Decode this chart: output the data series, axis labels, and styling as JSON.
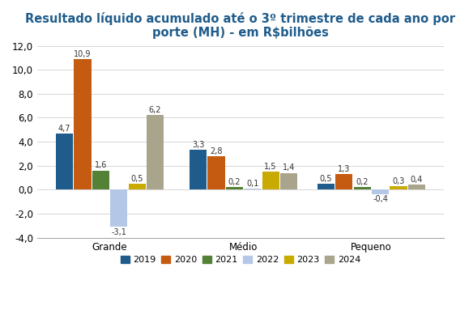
{
  "title": "Resultado líquido acumulado até o 3º trimestre de cada ano por\nporte (MH) - em R$bilhões",
  "categories": [
    "Grande",
    "Médio",
    "Pequeno"
  ],
  "years": [
    "2019",
    "2020",
    "2021",
    "2022",
    "2023",
    "2024"
  ],
  "colors": [
    "#1f5c8b",
    "#c55a11",
    "#538135",
    "#b4c7e7",
    "#c9aa00",
    "#a9a58c"
  ],
  "values": {
    "Grande": [
      4.7,
      10.9,
      1.6,
      -3.1,
      0.5,
      6.2
    ],
    "Médio": [
      3.3,
      2.8,
      0.2,
      0.1,
      1.5,
      1.4
    ],
    "Pequeno": [
      0.5,
      1.3,
      0.2,
      -0.4,
      0.3,
      0.4
    ]
  },
  "ylim": [
    -4.0,
    12.0
  ],
  "yticks": [
    -4.0,
    -2.0,
    0.0,
    2.0,
    4.0,
    6.0,
    8.0,
    10.0,
    12.0
  ],
  "background_color": "#ffffff",
  "title_color": "#1f5c8b",
  "title_fontsize": 10.5,
  "axis_label_fontsize": 8.5,
  "bar_label_fontsize": 7.0,
  "legend_fontsize": 8,
  "bar_width": 0.09,
  "group_centers": [
    0.35,
    1.05,
    1.72
  ]
}
